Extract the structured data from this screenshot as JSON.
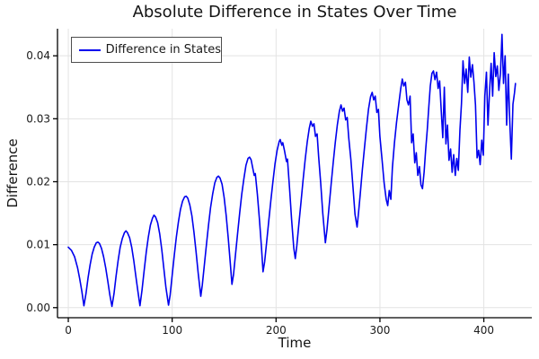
{
  "title": "Absolute Difference in States Over Time",
  "colors": {
    "series_line": "#0000ee",
    "grid": "#e3e3e3",
    "axis": "#000000",
    "text": "#141414",
    "tick_text": "#1a1a1a",
    "legend_border": "#4d4d4d",
    "background": "#ffffff"
  },
  "legend": {
    "position": "top-left",
    "entries": [
      {
        "label": "Difference in States",
        "color": "#0000ee"
      }
    ]
  },
  "chart_data": {
    "type": "line",
    "title": "Absolute Difference in States Over Time",
    "xlabel": "Time",
    "ylabel": "Difference",
    "xlim": [
      -10.4,
      446.2
    ],
    "ylim": [
      -0.0016,
      0.0443
    ],
    "grid": true,
    "legend_position": "top-left",
    "xticks": {
      "values": [
        0,
        100,
        200,
        300,
        400
      ],
      "labels": [
        "0",
        "100",
        "200",
        "300",
        "400"
      ]
    },
    "yticks": {
      "values": [
        0,
        0.01,
        0.02,
        0.03,
        0.04
      ],
      "labels": [
        "0.00",
        "0.01",
        "0.02",
        "0.03",
        "0.04"
      ]
    },
    "series": [
      {
        "name": "Difference in States",
        "color": "#0000ee",
        "points": [
          [
            0,
            0.0096
          ],
          [
            3,
            0.0091
          ],
          [
            6,
            0.0081
          ],
          [
            9,
            0.0063
          ],
          [
            11,
            0.0046
          ],
          [
            13,
            0.0026
          ],
          [
            15,
            0.0003
          ],
          [
            17,
            0.0022
          ],
          [
            19,
            0.0047
          ],
          [
            21,
            0.0068
          ],
          [
            23,
            0.0085
          ],
          [
            25,
            0.0096
          ],
          [
            27,
            0.0103
          ],
          [
            28.5,
            0.0104
          ],
          [
            30,
            0.0102
          ],
          [
            32,
            0.0094
          ],
          [
            34,
            0.0081
          ],
          [
            36,
            0.0063
          ],
          [
            38,
            0.0042
          ],
          [
            40,
            0.002
          ],
          [
            42,
            0.0002
          ],
          [
            44,
            0.0022
          ],
          [
            46,
            0.005
          ],
          [
            48,
            0.0075
          ],
          [
            50,
            0.0096
          ],
          [
            52,
            0.011
          ],
          [
            54,
            0.0119
          ],
          [
            55.5,
            0.0122
          ],
          [
            57,
            0.0119
          ],
          [
            59,
            0.0111
          ],
          [
            61,
            0.0096
          ],
          [
            63,
            0.0075
          ],
          [
            65,
            0.005
          ],
          [
            67,
            0.0026
          ],
          [
            69,
            0.0003
          ],
          [
            71,
            0.0028
          ],
          [
            73,
            0.0058
          ],
          [
            75,
            0.0088
          ],
          [
            77,
            0.0112
          ],
          [
            79,
            0.0131
          ],
          [
            81,
            0.0142
          ],
          [
            82.5,
            0.0147
          ],
          [
            84,
            0.0144
          ],
          [
            86,
            0.0135
          ],
          [
            88,
            0.0117
          ],
          [
            90,
            0.0092
          ],
          [
            92,
            0.0062
          ],
          [
            94,
            0.0032
          ],
          [
            96.5,
            0.0004
          ],
          [
            98,
            0.002
          ],
          [
            100,
            0.0052
          ],
          [
            102,
            0.0083
          ],
          [
            104,
            0.0112
          ],
          [
            106,
            0.0136
          ],
          [
            108,
            0.0156
          ],
          [
            110,
            0.0169
          ],
          [
            112,
            0.0176
          ],
          [
            113.5,
            0.0177
          ],
          [
            115,
            0.0174
          ],
          [
            117,
            0.0163
          ],
          [
            119,
            0.0146
          ],
          [
            121,
            0.012
          ],
          [
            123,
            0.0088
          ],
          [
            125,
            0.0055
          ],
          [
            127.5,
            0.0018
          ],
          [
            129,
            0.0036
          ],
          [
            131,
            0.0068
          ],
          [
            133,
            0.01
          ],
          [
            135,
            0.0131
          ],
          [
            137,
            0.0159
          ],
          [
            139,
            0.0181
          ],
          [
            141,
            0.0198
          ],
          [
            143,
            0.0207
          ],
          [
            144.5,
            0.0209
          ],
          [
            146,
            0.0206
          ],
          [
            148,
            0.0196
          ],
          [
            150,
            0.0175
          ],
          [
            152,
            0.0146
          ],
          [
            154,
            0.011
          ],
          [
            156,
            0.007
          ],
          [
            157.5,
            0.0037
          ],
          [
            159,
            0.0052
          ],
          [
            161,
            0.0085
          ],
          [
            163,
            0.0118
          ],
          [
            165,
            0.015
          ],
          [
            167,
            0.018
          ],
          [
            169,
            0.0205
          ],
          [
            171,
            0.0226
          ],
          [
            173,
            0.0237
          ],
          [
            174.5,
            0.0239
          ],
          [
            176,
            0.0235
          ],
          [
            177.5,
            0.0222
          ],
          [
            179,
            0.021
          ],
          [
            180,
            0.0213
          ],
          [
            182,
            0.018
          ],
          [
            184,
            0.014
          ],
          [
            186,
            0.0095
          ],
          [
            187.5,
            0.0057
          ],
          [
            189,
            0.0073
          ],
          [
            191,
            0.0105
          ],
          [
            193,
            0.0138
          ],
          [
            195,
            0.017
          ],
          [
            197,
            0.02
          ],
          [
            199,
            0.0228
          ],
          [
            201,
            0.025
          ],
          [
            203,
            0.0264
          ],
          [
            204,
            0.0267
          ],
          [
            205.5,
            0.0258
          ],
          [
            206.5,
            0.0262
          ],
          [
            208,
            0.025
          ],
          [
            210,
            0.0232
          ],
          [
            211,
            0.0236
          ],
          [
            213,
            0.019
          ],
          [
            215,
            0.014
          ],
          [
            217,
            0.0095
          ],
          [
            218.5,
            0.0078
          ],
          [
            220,
            0.0098
          ],
          [
            222,
            0.0133
          ],
          [
            224,
            0.0168
          ],
          [
            226,
            0.0203
          ],
          [
            228,
            0.0235
          ],
          [
            230,
            0.0263
          ],
          [
            232,
            0.0285
          ],
          [
            233.5,
            0.0296
          ],
          [
            235,
            0.0288
          ],
          [
            236.5,
            0.0292
          ],
          [
            238,
            0.0272
          ],
          [
            239.5,
            0.0276
          ],
          [
            241,
            0.024
          ],
          [
            243,
            0.0198
          ],
          [
            245,
            0.015
          ],
          [
            247.5,
            0.0103
          ],
          [
            249,
            0.0124
          ],
          [
            251,
            0.016
          ],
          [
            253,
            0.0196
          ],
          [
            255,
            0.023
          ],
          [
            257,
            0.0262
          ],
          [
            259,
            0.029
          ],
          [
            261,
            0.0312
          ],
          [
            262.5,
            0.0322
          ],
          [
            264,
            0.0312
          ],
          [
            265.5,
            0.0317
          ],
          [
            267,
            0.0298
          ],
          [
            268.5,
            0.0302
          ],
          [
            270,
            0.027
          ],
          [
            272,
            0.0235
          ],
          [
            274,
            0.0192
          ],
          [
            276,
            0.0148
          ],
          [
            278,
            0.0128
          ],
          [
            279.5,
            0.0152
          ],
          [
            281,
            0.018
          ],
          [
            283,
            0.0218
          ],
          [
            285,
            0.0252
          ],
          [
            287,
            0.0285
          ],
          [
            289,
            0.0315
          ],
          [
            291,
            0.0335
          ],
          [
            292.5,
            0.0342
          ],
          [
            294,
            0.033
          ],
          [
            295.5,
            0.0336
          ],
          [
            297,
            0.031
          ],
          [
            298.5,
            0.0315
          ],
          [
            300,
            0.0272
          ],
          [
            302,
            0.0235
          ],
          [
            304,
            0.0198
          ],
          [
            306,
            0.0172
          ],
          [
            307.5,
            0.0162
          ],
          [
            309,
            0.0186
          ],
          [
            310.5,
            0.0172
          ],
          [
            312,
            0.0222
          ],
          [
            314,
            0.0262
          ],
          [
            316,
            0.0294
          ],
          [
            318,
            0.0322
          ],
          [
            320,
            0.0348
          ],
          [
            321.5,
            0.0363
          ],
          [
            323,
            0.0352
          ],
          [
            324.5,
            0.0358
          ],
          [
            326,
            0.033
          ],
          [
            327.5,
            0.0322
          ],
          [
            329,
            0.0336
          ],
          [
            330.5,
            0.0262
          ],
          [
            332,
            0.0276
          ],
          [
            333.5,
            0.023
          ],
          [
            335,
            0.0246
          ],
          [
            336.5,
            0.021
          ],
          [
            338,
            0.0224
          ],
          [
            339.5,
            0.0195
          ],
          [
            341,
            0.0189
          ],
          [
            342.5,
            0.0215
          ],
          [
            344,
            0.025
          ],
          [
            345.5,
            0.0282
          ],
          [
            347,
            0.0318
          ],
          [
            348.5,
            0.0352
          ],
          [
            350,
            0.0372
          ],
          [
            351.5,
            0.0376
          ],
          [
            353,
            0.0362
          ],
          [
            354.5,
            0.0374
          ],
          [
            356,
            0.0348
          ],
          [
            357.5,
            0.036
          ],
          [
            359,
            0.0312
          ],
          [
            360.5,
            0.027
          ],
          [
            362,
            0.035
          ],
          [
            363.5,
            0.026
          ],
          [
            365,
            0.029
          ],
          [
            366.5,
            0.0234
          ],
          [
            368,
            0.0252
          ],
          [
            369.5,
            0.0215
          ],
          [
            371,
            0.0243
          ],
          [
            372.5,
            0.021
          ],
          [
            374,
            0.0237
          ],
          [
            375.5,
            0.0218
          ],
          [
            377,
            0.0282
          ],
          [
            378.5,
            0.0324
          ],
          [
            380,
            0.0392
          ],
          [
            381.5,
            0.0356
          ],
          [
            383,
            0.0379
          ],
          [
            384.5,
            0.0342
          ],
          [
            386,
            0.0398
          ],
          [
            387.5,
            0.0366
          ],
          [
            389,
            0.0386
          ],
          [
            390.5,
            0.0358
          ],
          [
            392,
            0.0322
          ],
          [
            393.5,
            0.0238
          ],
          [
            395,
            0.025
          ],
          [
            396.5,
            0.0227
          ],
          [
            398,
            0.0266
          ],
          [
            399.5,
            0.0242
          ],
          [
            401,
            0.0336
          ],
          [
            402.5,
            0.0374
          ],
          [
            404,
            0.029
          ],
          [
            405.5,
            0.0342
          ],
          [
            407,
            0.0388
          ],
          [
            408.5,
            0.0336
          ],
          [
            410,
            0.0405
          ],
          [
            411.5,
            0.0367
          ],
          [
            413,
            0.0384
          ],
          [
            414.5,
            0.0345
          ],
          [
            416,
            0.0372
          ],
          [
            417.5,
            0.0434
          ],
          [
            419,
            0.0356
          ],
          [
            420.5,
            0.04
          ],
          [
            422,
            0.029
          ],
          [
            423.5,
            0.0371
          ],
          [
            425,
            0.0294
          ],
          [
            426.5,
            0.0236
          ],
          [
            428,
            0.0323
          ],
          [
            429.5,
            0.0341
          ],
          [
            430.5,
            0.0356
          ]
        ]
      }
    ]
  }
}
